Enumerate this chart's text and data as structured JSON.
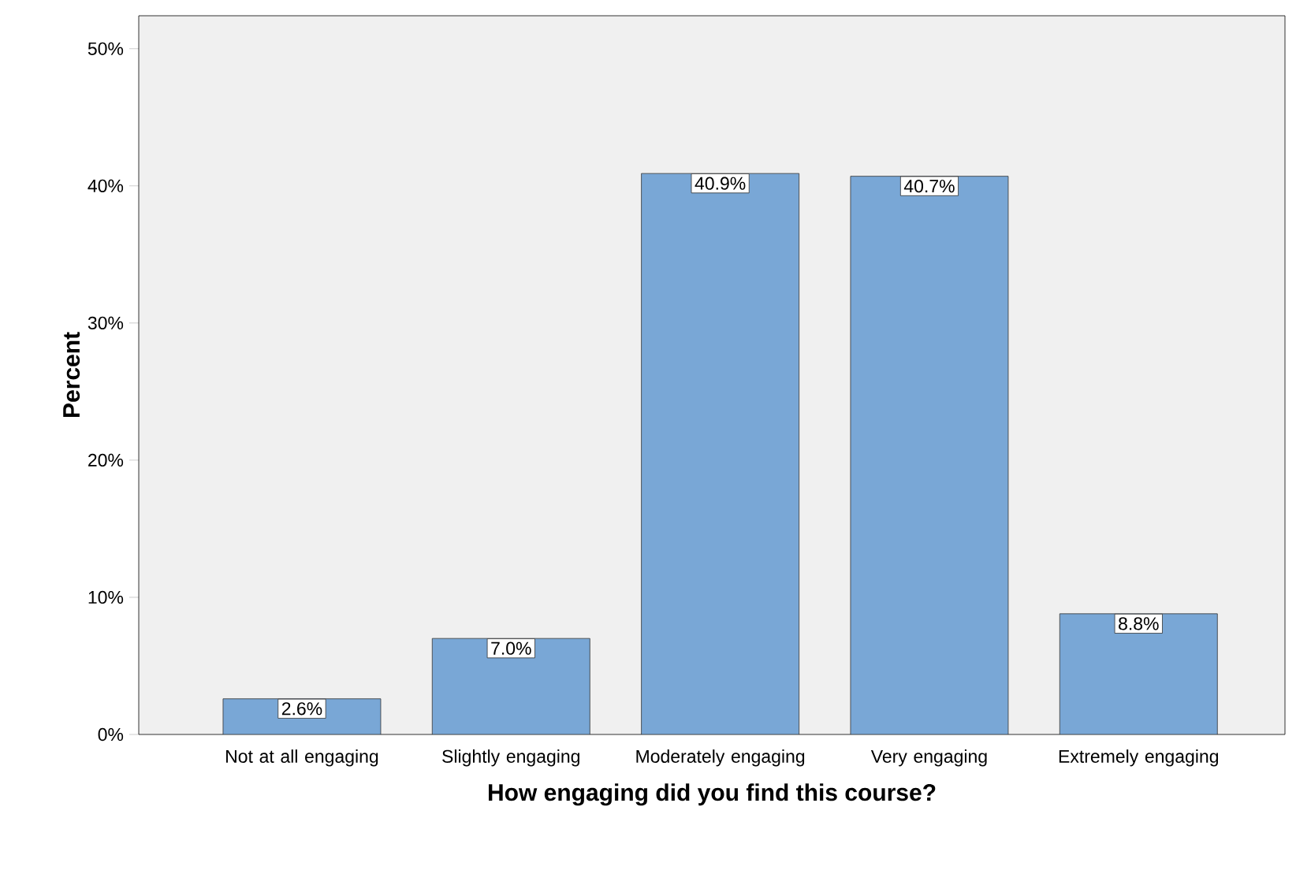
{
  "chart_data": {
    "type": "bar",
    "xlabel": "How engaging did you find this course?",
    "ylabel": "Percent",
    "categories": [
      "Not at all engaging",
      "Slightly engaging",
      "Moderately engaging",
      "Very engaging",
      "Extremely engaging"
    ],
    "values": [
      2.6,
      7.0,
      40.9,
      40.7,
      8.8
    ],
    "value_labels": [
      "2.6%",
      "7.0%",
      "40.9%",
      "40.7%",
      "8.8%"
    ],
    "color": "#79a7d6",
    "ylim": [
      0,
      52.4
    ],
    "yticks": [
      {
        "value": 0,
        "label": "0%"
      },
      {
        "value": 10,
        "label": "10%"
      },
      {
        "value": 20,
        "label": "20%"
      },
      {
        "value": 30,
        "label": "30%"
      },
      {
        "value": 40,
        "label": "40%"
      },
      {
        "value": 50,
        "label": "50%"
      }
    ],
    "data_labels": false
  }
}
